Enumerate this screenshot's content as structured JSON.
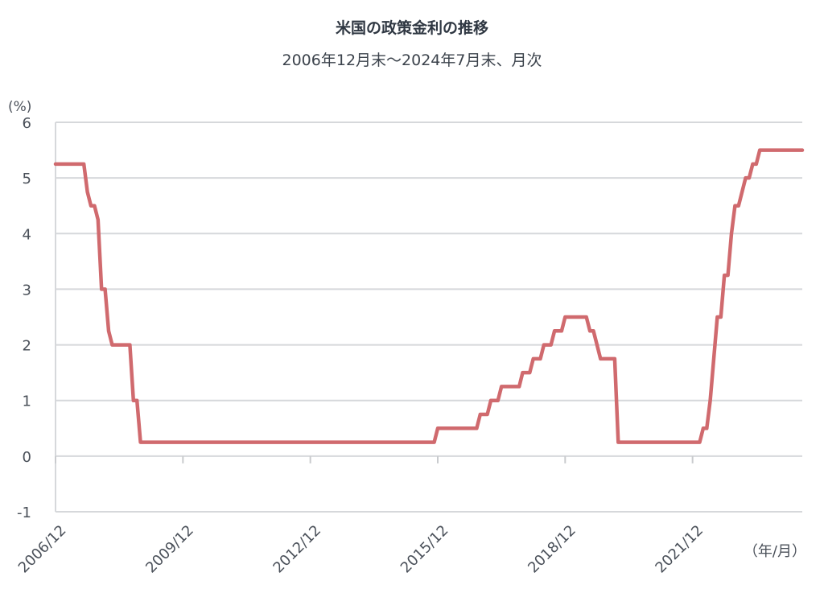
{
  "chart_data": {
    "type": "line",
    "title": "米国の政策金利の推移",
    "subtitle": "2006年12月末～2024年7月末、月次",
    "ylabel": "(%)",
    "xlabel": "（年/月）",
    "ylim": [
      -1,
      6
    ],
    "yticks": [
      -1,
      0,
      1,
      2,
      3,
      4,
      5,
      6
    ],
    "xlim": [
      "2006/12",
      "2024/07"
    ],
    "xticks": [
      "2006/12",
      "2009/12",
      "2012/12",
      "2015/12",
      "2018/12",
      "2021/12"
    ],
    "grid": true,
    "legend": "none",
    "series": [
      {
        "color": "#d06a6e",
        "points": [
          [
            "2006/12",
            5.25
          ],
          [
            "2007/08",
            5.25
          ],
          [
            "2007/09",
            4.75
          ],
          [
            "2007/10",
            4.5
          ],
          [
            "2007/11",
            4.5
          ],
          [
            "2007/12",
            4.25
          ],
          [
            "2008/01",
            3.0
          ],
          [
            "2008/02",
            3.0
          ],
          [
            "2008/03",
            2.25
          ],
          [
            "2008/04",
            2.0
          ],
          [
            "2008/09",
            2.0
          ],
          [
            "2008/10",
            1.0
          ],
          [
            "2008/11",
            1.0
          ],
          [
            "2008/12",
            0.25
          ],
          [
            "2015/11",
            0.25
          ],
          [
            "2015/12",
            0.5
          ],
          [
            "2016/11",
            0.5
          ],
          [
            "2016/12",
            0.75
          ],
          [
            "2017/02",
            0.75
          ],
          [
            "2017/03",
            1.0
          ],
          [
            "2017/05",
            1.0
          ],
          [
            "2017/06",
            1.25
          ],
          [
            "2017/11",
            1.25
          ],
          [
            "2017/12",
            1.5
          ],
          [
            "2018/02",
            1.5
          ],
          [
            "2018/03",
            1.75
          ],
          [
            "2018/05",
            1.75
          ],
          [
            "2018/06",
            2.0
          ],
          [
            "2018/08",
            2.0
          ],
          [
            "2018/09",
            2.25
          ],
          [
            "2018/11",
            2.25
          ],
          [
            "2018/12",
            2.5
          ],
          [
            "2019/06",
            2.5
          ],
          [
            "2019/07",
            2.25
          ],
          [
            "2019/08",
            2.25
          ],
          [
            "2019/09",
            2.0
          ],
          [
            "2019/10",
            1.75
          ],
          [
            "2020/02",
            1.75
          ],
          [
            "2020/03",
            0.25
          ],
          [
            "2022/02",
            0.25
          ],
          [
            "2022/03",
            0.5
          ],
          [
            "2022/04",
            0.5
          ],
          [
            "2022/05",
            1.0
          ],
          [
            "2022/06",
            1.75
          ],
          [
            "2022/07",
            2.5
          ],
          [
            "2022/08",
            2.5
          ],
          [
            "2022/09",
            3.25
          ],
          [
            "2022/10",
            3.25
          ],
          [
            "2022/11",
            4.0
          ],
          [
            "2022/12",
            4.5
          ],
          [
            "2023/01",
            4.5
          ],
          [
            "2023/02",
            4.75
          ],
          [
            "2023/03",
            5.0
          ],
          [
            "2023/04",
            5.0
          ],
          [
            "2023/05",
            5.25
          ],
          [
            "2023/06",
            5.25
          ],
          [
            "2023/07",
            5.5
          ],
          [
            "2024/07",
            5.5
          ]
        ]
      }
    ]
  }
}
